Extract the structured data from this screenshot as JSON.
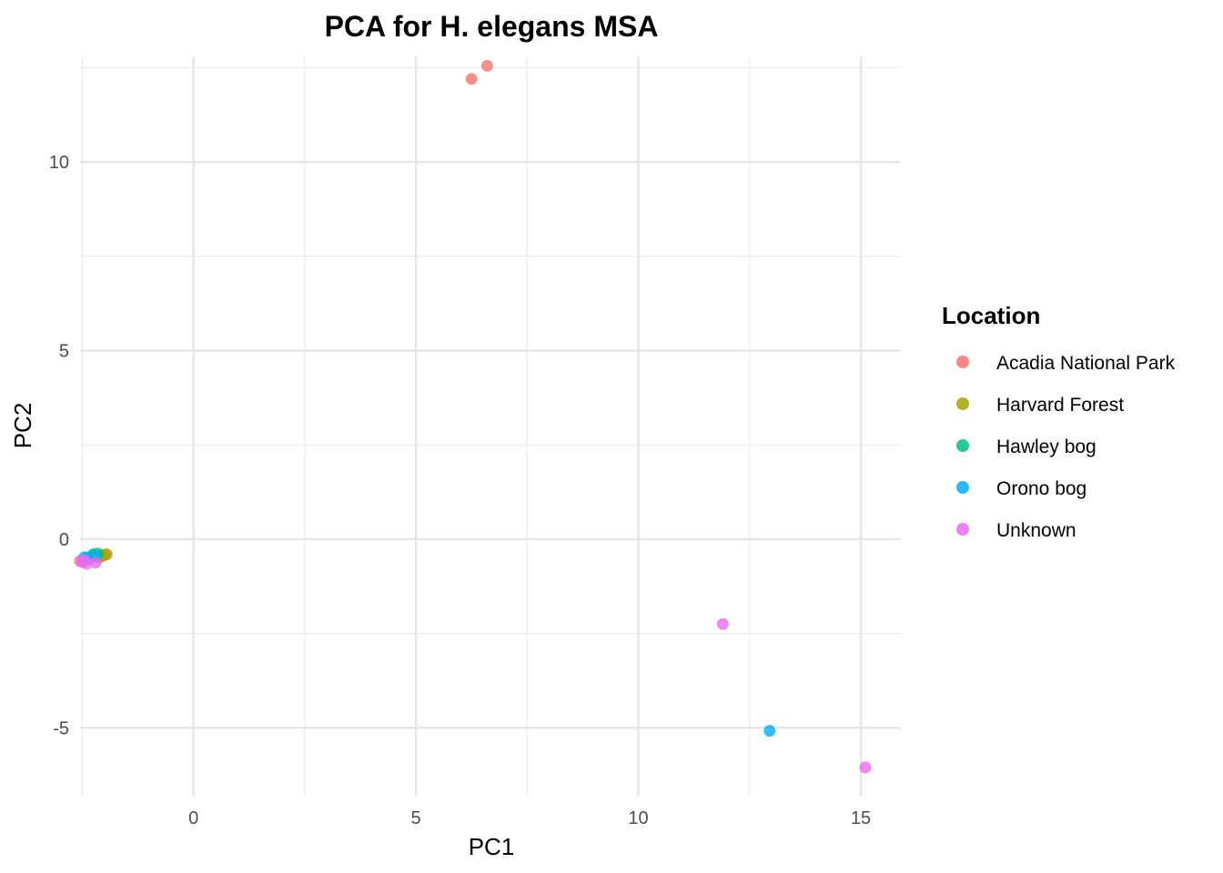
{
  "chart_data": {
    "type": "scatter",
    "title": "PCA for H. elegans MSA",
    "xlabel": "PC1",
    "ylabel": "PC2",
    "xlim": [
      -2.55,
      15.9
    ],
    "ylim": [
      -6.8,
      12.8
    ],
    "x_ticks": [
      0,
      5,
      10,
      15
    ],
    "y_ticks": [
      -5,
      0,
      5,
      10
    ],
    "x_tick_labels": [
      "0",
      "5",
      "10",
      "15"
    ],
    "y_tick_labels": [
      "-5",
      "0",
      "5",
      "10"
    ],
    "grid": true,
    "legend": {
      "title": "Location",
      "position": "right"
    },
    "series": [
      {
        "name": "Acadia National Park",
        "color": "#F8766D",
        "points": [
          [
            6.25,
            12.2
          ],
          [
            6.6,
            12.55
          ],
          [
            -2.55,
            -0.58
          ],
          [
            -2.0,
            -0.42
          ],
          [
            -2.1,
            -0.48
          ]
        ]
      },
      {
        "name": "Harvard Forest",
        "color": "#A3A500",
        "points": [
          [
            -2.15,
            -0.47
          ],
          [
            -1.95,
            -0.4
          ],
          [
            -2.05,
            -0.43
          ]
        ]
      },
      {
        "name": "Hawley bog",
        "color": "#00BF7D",
        "points": [
          [
            -2.25,
            -0.4
          ],
          [
            -2.15,
            -0.38
          ],
          [
            -2.3,
            -0.45
          ]
        ]
      },
      {
        "name": "Orono bog",
        "color": "#00B0F6",
        "points": [
          [
            -2.45,
            -0.48
          ],
          [
            -2.4,
            -0.5
          ],
          [
            -2.35,
            -0.52
          ],
          [
            -2.2,
            -0.45
          ],
          [
            12.95,
            -5.08
          ]
        ]
      },
      {
        "name": "Unknown",
        "color": "#E76BF3",
        "points": [
          [
            -2.5,
            -0.6
          ],
          [
            -2.4,
            -0.65
          ],
          [
            -2.2,
            -0.62
          ],
          [
            -2.45,
            -0.55
          ],
          [
            11.9,
            -2.25
          ],
          [
            15.1,
            -6.05
          ]
        ]
      }
    ]
  }
}
